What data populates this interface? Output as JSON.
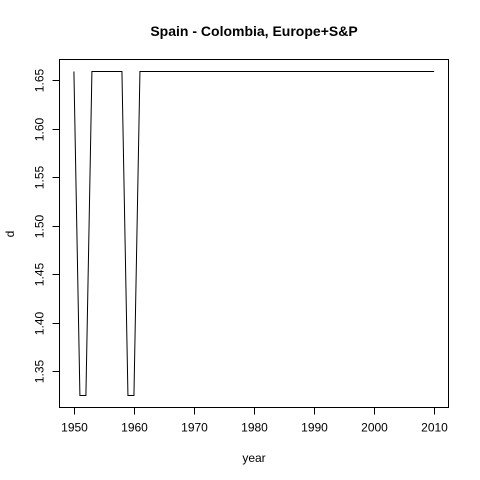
{
  "chart_data": {
    "type": "line",
    "title": "Spain - Colombia, Europe+S&P",
    "xlabel": "year",
    "ylabel": "d",
    "xlim": [
      1947.6,
      2012.4
    ],
    "ylim": [
      1.3126,
      1.6714
    ],
    "xticks": [
      1950,
      1960,
      1970,
      1980,
      1990,
      2000,
      2010
    ],
    "yticks": [
      1.35,
      1.4,
      1.45,
      1.5,
      1.55,
      1.6,
      1.65
    ],
    "ytick_labels": [
      "1.35",
      "1.40",
      "1.45",
      "1.50",
      "1.55",
      "1.60",
      "1.65"
    ],
    "grid": false,
    "series": [
      {
        "x": [
          1950,
          1951,
          1952,
          1953,
          1954,
          1955,
          1956,
          1957,
          1958,
          1959,
          1960,
          1961,
          1962,
          1963,
          1964,
          1965,
          1966,
          1967,
          1968,
          1969,
          1970,
          1975,
          1980,
          1985,
          1990,
          1995,
          2000,
          2005,
          2010
        ],
        "y": [
          1.659,
          1.325,
          1.325,
          1.659,
          1.659,
          1.659,
          1.659,
          1.659,
          1.659,
          1.325,
          1.325,
          1.659,
          1.659,
          1.659,
          1.659,
          1.659,
          1.659,
          1.659,
          1.659,
          1.659,
          1.659,
          1.659,
          1.659,
          1.659,
          1.659,
          1.659,
          1.659,
          1.659,
          1.659
        ]
      }
    ]
  }
}
